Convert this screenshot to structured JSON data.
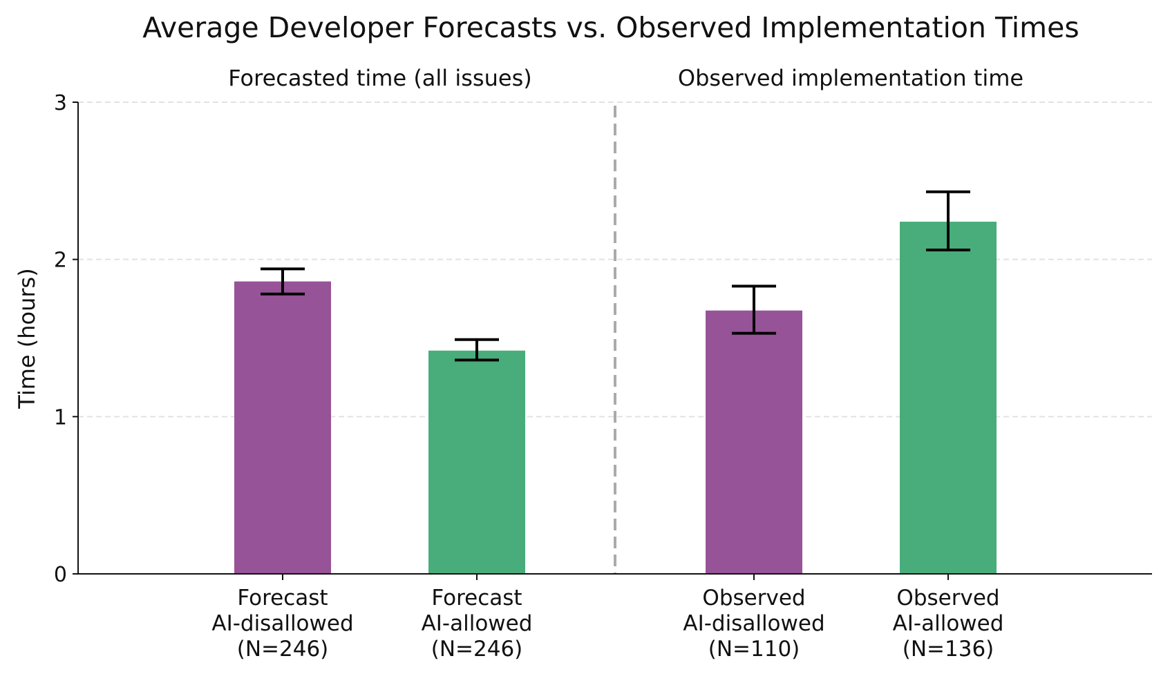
{
  "chart_data": {
    "type": "bar",
    "title": "Average Developer Forecasts vs. Observed Implementation Times",
    "section_labels": [
      "Forecasted time (all issues)",
      "Observed implementation time"
    ],
    "ylabel": "Time (hours)",
    "xlabel": "",
    "ylim": [
      0,
      3
    ],
    "yticks": [
      "0",
      "1",
      "2",
      "3"
    ],
    "grid": true,
    "categories": [
      [
        "Forecast",
        "AI-disallowed",
        "(N=246)"
      ],
      [
        "Forecast",
        "AI-allowed",
        "(N=246)"
      ],
      [
        "Observed",
        "AI-disallowed",
        "(N=110)"
      ],
      [
        "Observed",
        "AI-allowed",
        "(N=136)"
      ]
    ],
    "values": [
      1.86,
      1.42,
      1.675,
      2.24
    ],
    "error_low": [
      1.78,
      1.36,
      1.53,
      2.06
    ],
    "error_high": [
      1.94,
      1.49,
      1.83,
      2.43
    ],
    "colors": [
      "#975397",
      "#48ad7b",
      "#975397",
      "#48ad7b"
    ],
    "divider_color": "#aaaaaa"
  }
}
